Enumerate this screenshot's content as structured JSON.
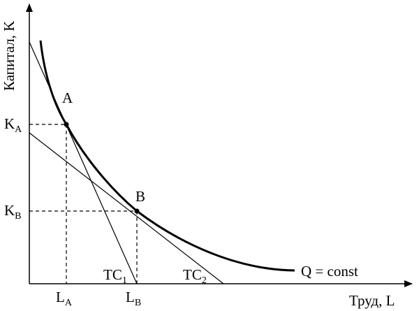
{
  "axes": {
    "y_label": "Капитал, K",
    "x_label": "Труд, L"
  },
  "points": {
    "a": {
      "label": "A"
    },
    "b": {
      "label": "B"
    }
  },
  "ticks": {
    "ka": {
      "main": "K",
      "sub": "A"
    },
    "kb": {
      "main": "K",
      "sub": "B"
    },
    "la": {
      "main": "L",
      "sub": "A"
    },
    "lb": {
      "main": "L",
      "sub": "B"
    }
  },
  "lines": {
    "tc1": {
      "main": "TC",
      "sub": "1"
    },
    "tc2": {
      "main": "TC",
      "sub": "2"
    }
  },
  "curve": {
    "label": "Q = const"
  },
  "colors": {
    "ink": "#000000",
    "background": "#ffffff"
  }
}
